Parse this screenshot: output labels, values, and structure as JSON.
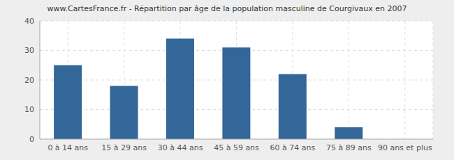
{
  "chart_data": {
    "type": "bar",
    "title": "www.CartesFrance.fr - Répartition par âge de la population masculine de Courgivaux en 2007",
    "categories": [
      "0 à 14 ans",
      "15 à 29 ans",
      "30 à 44 ans",
      "45 à 59 ans",
      "60 à 74 ans",
      "75 à 89 ans",
      "90 ans et plus"
    ],
    "values": [
      25,
      18,
      34,
      31,
      22,
      4,
      0
    ],
    "color": "#336699",
    "ylim": [
      0,
      40
    ],
    "yticks": [
      0,
      10,
      20,
      30,
      40
    ],
    "grid": true
  }
}
